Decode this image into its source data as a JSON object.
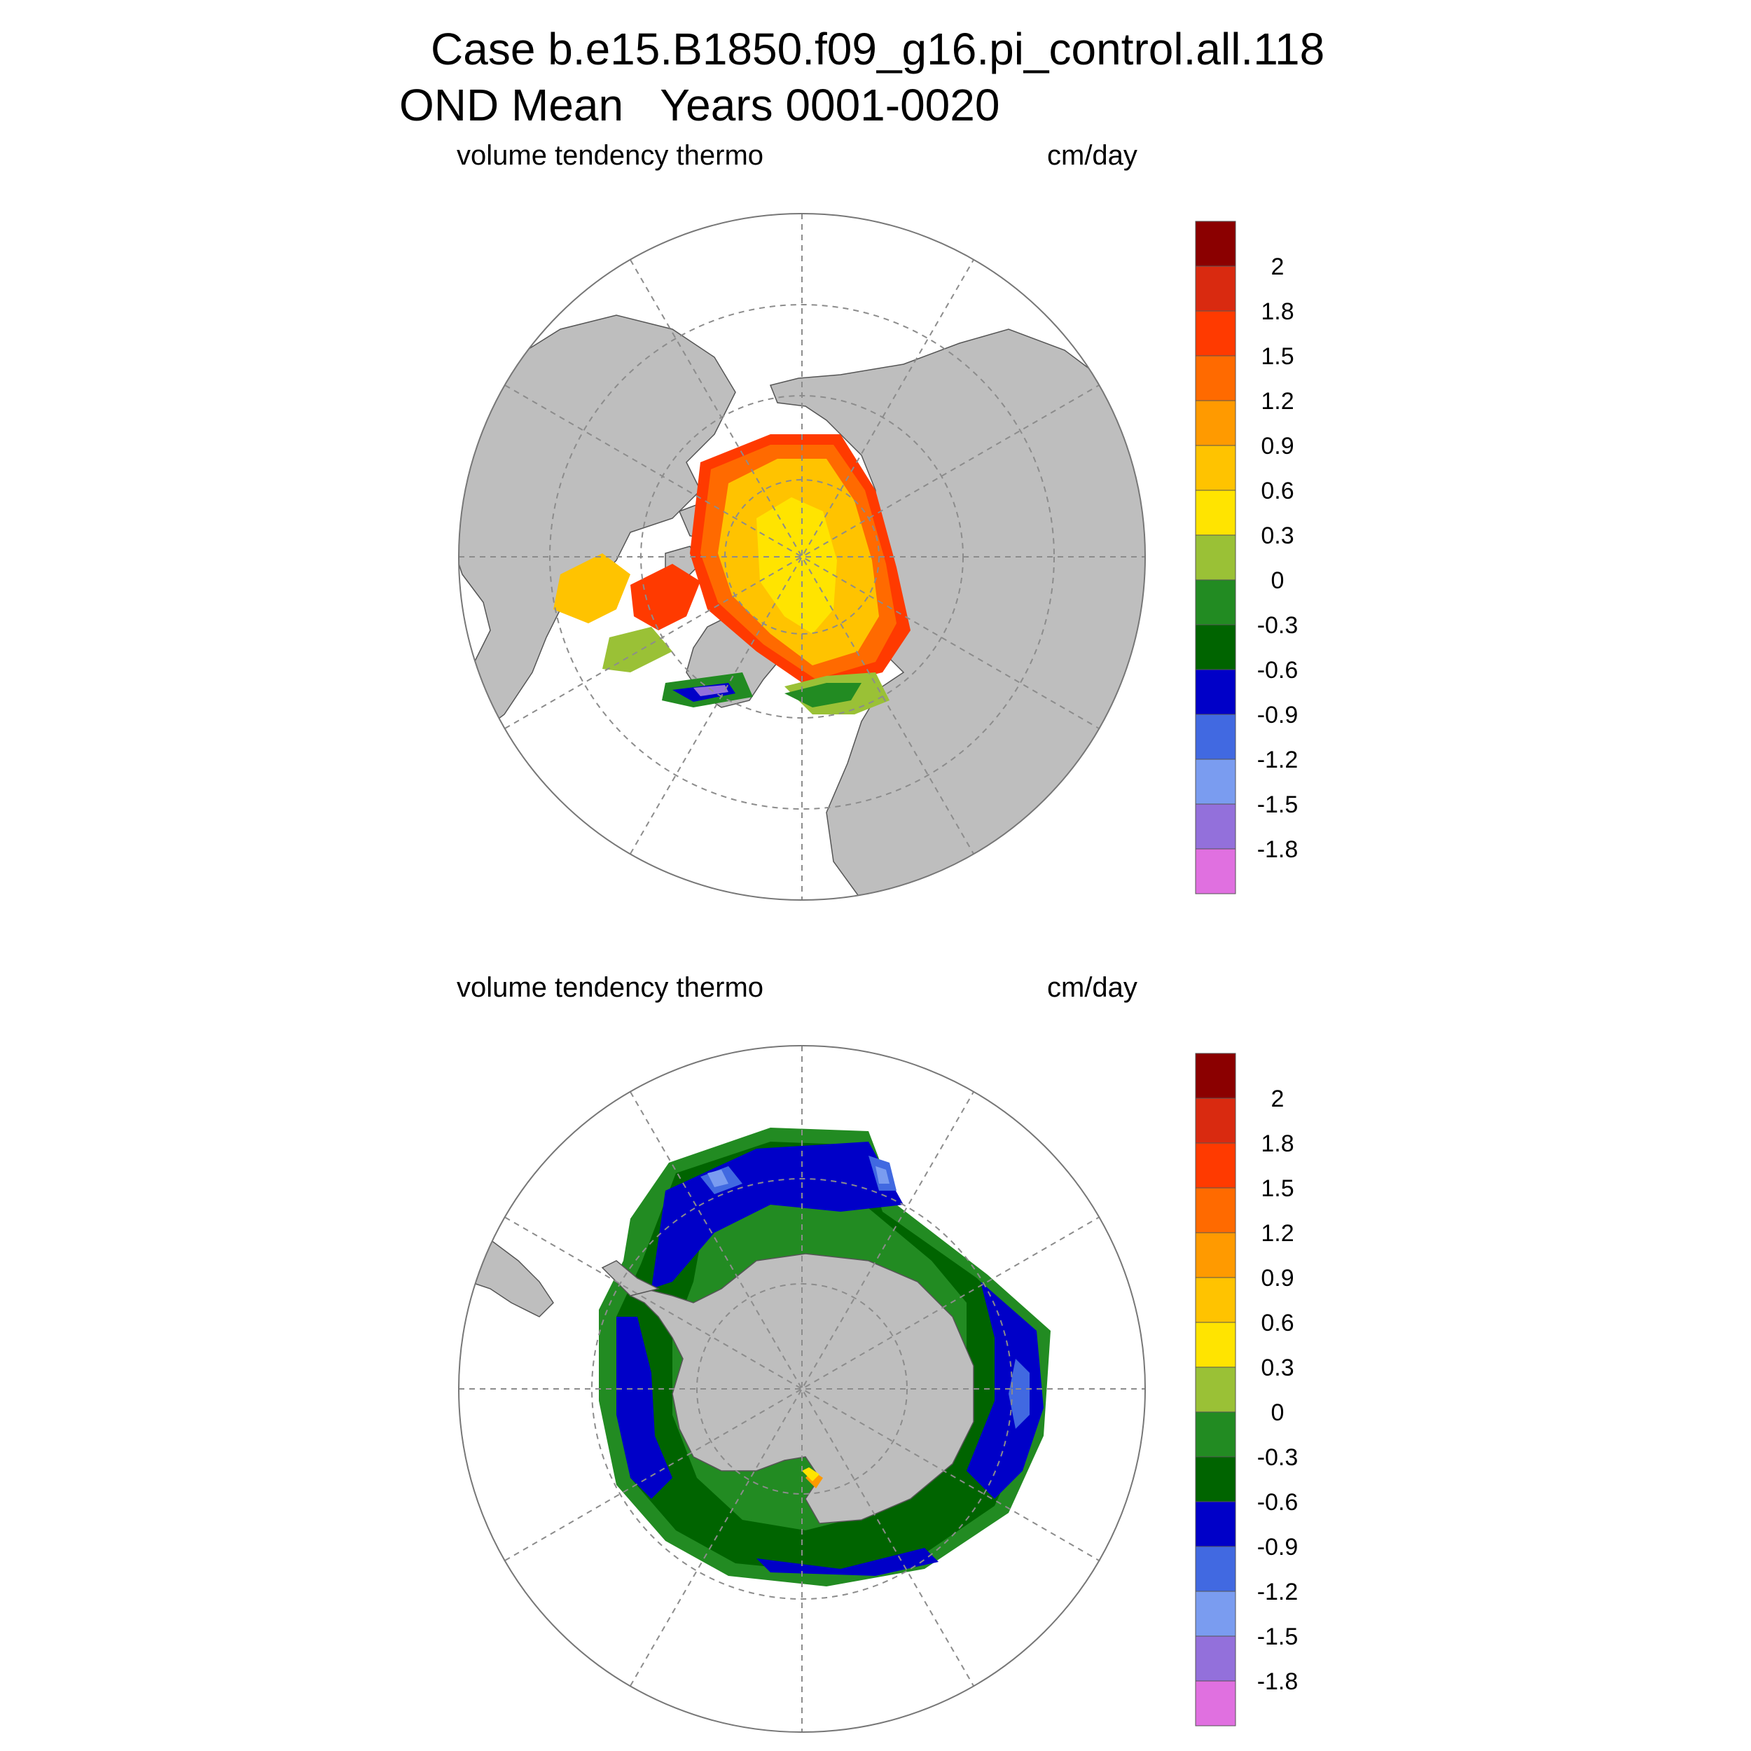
{
  "title": {
    "line1": "Case b.e15.B1850.f09_g16.pi_control.all.118",
    "line2": "OND Mean   Years 0001-0020"
  },
  "panels": [
    {
      "id": "north",
      "left_label": "volume tendency thermo",
      "right_label": "cm/day"
    },
    {
      "id": "south",
      "left_label": "volume tendency thermo",
      "right_label": "cm/day"
    }
  ],
  "colorbar": {
    "labels": [
      "2",
      "1.8",
      "1.5",
      "1.2",
      "0.9",
      "0.6",
      "0.3",
      "0",
      "-0.3",
      "-0.6",
      "-0.9",
      "-1.2",
      "-1.5",
      "-1.8"
    ],
    "colors": [
      "#8b0000",
      "#d92a10",
      "#ff3a00",
      "#ff6a00",
      "#ff9a00",
      "#ffc300",
      "#ffe400",
      "#9ac136",
      "#228b22",
      "#006400",
      "#0000c8",
      "#4169e1",
      "#7a9cf0",
      "#9370db",
      "#e070e0"
    ]
  },
  "map_colors": {
    "land": "#bebebe",
    "ocean": "#ffffff",
    "grid": "#8c8c8c"
  }
}
